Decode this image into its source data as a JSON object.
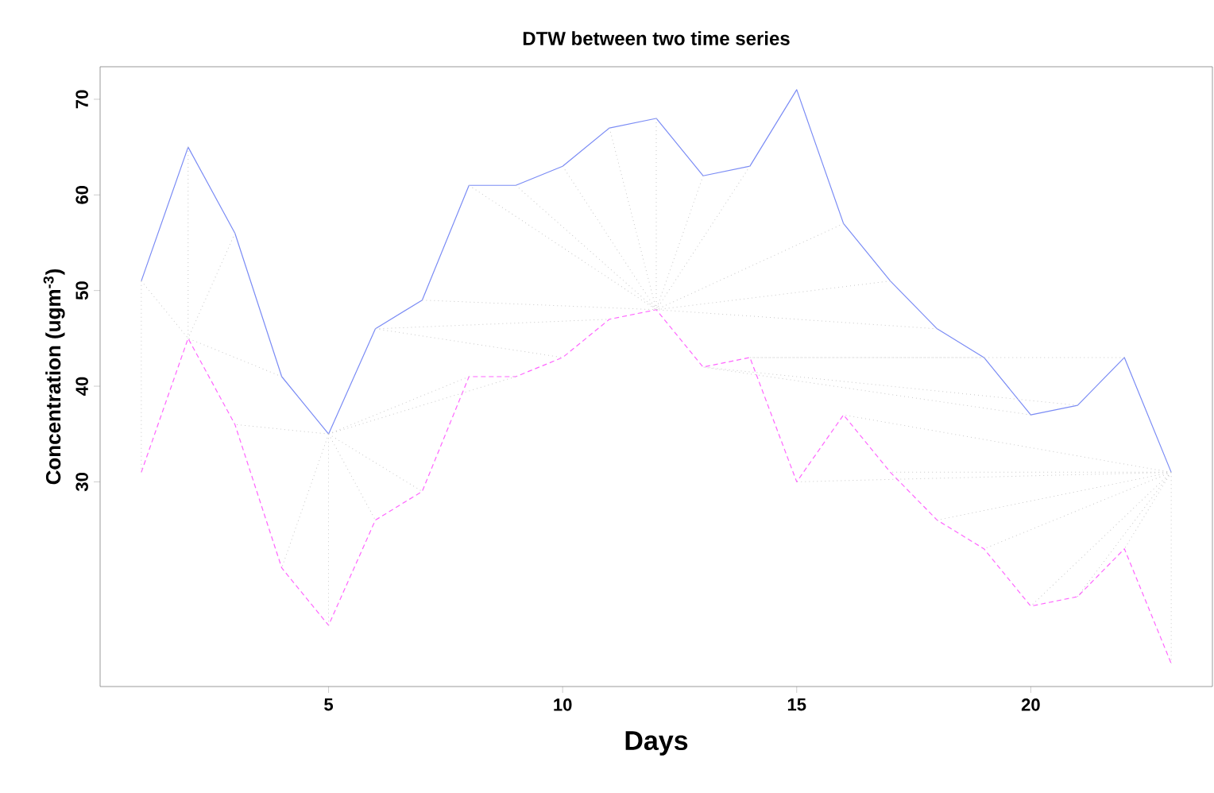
{
  "chart_data": {
    "type": "line",
    "title": "DTW between two time series",
    "xlabel": "Days",
    "ylabel": "Concentration (ugm$^{-3}$)",
    "x": [
      1,
      2,
      3,
      4,
      5,
      6,
      7,
      8,
      9,
      10,
      11,
      12,
      13,
      14,
      15,
      16,
      17,
      18,
      19,
      20,
      21,
      22,
      23
    ],
    "series": [
      {
        "color": "#7b8cf5",
        "line_style": "solid",
        "values": [
          51,
          65,
          56,
          41,
          35,
          46,
          49,
          61,
          61,
          63,
          67,
          68,
          62,
          63,
          71,
          57,
          51,
          46,
          43,
          37,
          38,
          43,
          31
        ]
      },
      {
        "color": "#ff66ff",
        "line_style": "dashed",
        "values": [
          31,
          45,
          36,
          21,
          15,
          26,
          29,
          41,
          41,
          43,
          47,
          48,
          42,
          43,
          30,
          37,
          31,
          26,
          23,
          17,
          18,
          23,
          11
        ]
      },
      {
        "color": "#c8c8c8",
        "line_style": "dotted",
        "x": [
          1,
          1,
          null,
          1,
          2,
          null,
          2,
          2,
          null,
          3,
          2,
          null,
          4,
          2,
          null,
          5,
          3,
          null,
          5,
          4,
          null,
          5,
          5,
          null,
          5,
          6,
          null,
          5,
          7,
          null,
          5,
          8,
          null,
          5,
          9,
          null,
          6,
          10,
          null,
          6,
          11,
          null,
          7,
          12,
          null,
          8,
          12,
          null,
          9,
          12,
          null,
          10,
          12,
          null,
          11,
          12,
          null,
          12,
          12,
          null,
          13,
          12,
          null,
          14,
          12,
          null,
          16,
          12,
          null,
          17,
          12,
          null,
          18,
          12,
          null,
          20,
          13,
          null,
          21,
          13,
          null,
          19,
          14,
          null,
          22,
          14,
          null,
          23,
          15,
          null,
          23,
          16,
          null,
          23,
          17,
          null,
          23,
          18,
          null,
          23,
          19,
          null,
          23,
          20,
          null,
          23,
          21,
          null,
          23,
          22,
          null,
          23,
          23
        ],
        "values": [
          51,
          31,
          null,
          51,
          45,
          null,
          65,
          45,
          null,
          56,
          45,
          null,
          41,
          45,
          null,
          35,
          36,
          null,
          35,
          21,
          null,
          35,
          15,
          null,
          35,
          26,
          null,
          35,
          29,
          null,
          35,
          41,
          null,
          35,
          41,
          null,
          46,
          43,
          null,
          46,
          47,
          null,
          49,
          48,
          null,
          61,
          48,
          null,
          61,
          48,
          null,
          63,
          48,
          null,
          67,
          48,
          null,
          68,
          48,
          null,
          62,
          48,
          null,
          63,
          48,
          null,
          57,
          48,
          null,
          51,
          48,
          null,
          46,
          48,
          null,
          37,
          42,
          null,
          38,
          42,
          null,
          43,
          43,
          null,
          43,
          43,
          null,
          31,
          30,
          null,
          31,
          37,
          null,
          31,
          31,
          null,
          31,
          26,
          null,
          31,
          23,
          null,
          31,
          17,
          null,
          31,
          18,
          null,
          31,
          23,
          null,
          31,
          11
        ]
      }
    ],
    "xlim": [
      0.12,
      23.88
    ],
    "ylim": [
      8.6,
      73.4
    ],
    "xticks": [
      5,
      10,
      15,
      20
    ],
    "yticks": [
      30,
      40,
      50,
      60,
      70
    ],
    "marker": "none"
  }
}
